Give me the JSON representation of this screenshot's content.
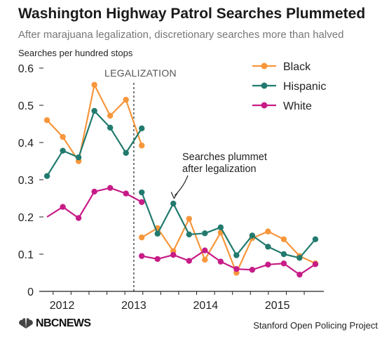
{
  "chart_data": {
    "type": "line",
    "title": "Washington Highway Patrol Searches Plummeted",
    "subtitle": "After marajuana legalization, discretionary searches more than halved",
    "ylabel": "Searches per hundred stops",
    "ylim": [
      0,
      0.6
    ],
    "yticks": [
      0,
      0.1,
      0.2,
      0.3,
      0.4,
      0.5,
      0.6
    ],
    "ytick_labels": [
      "0",
      "0.1",
      "0.2",
      "0.3",
      "0.4",
      "0.5",
      "0.6"
    ],
    "xlim": [
      2011.75,
      2015.55
    ],
    "xtick_labels": [
      {
        "label": "2012",
        "x": 2012.0
      },
      {
        "label": "2013",
        "x": 2013.0
      },
      {
        "label": "2014",
        "x": 2014.0
      },
      {
        "label": "2015",
        "x": 2015.0
      }
    ],
    "xticks": [
      2011.875,
      2012.125,
      2012.375,
      2012.625,
      2012.875,
      2013.125,
      2013.375,
      2013.625,
      2013.875,
      2014.125,
      2014.375,
      2014.625,
      2014.875,
      2015.125,
      2015.375
    ],
    "grid": false,
    "legend_position": "top-right",
    "legalization": {
      "x": 2013.0,
      "label": "LEGALIZATION"
    },
    "annotation": {
      "text": [
        "Searches plummet",
        "after legalization"
      ],
      "points_to": {
        "x": 2013.56,
        "y": 0.25
      }
    },
    "series": [
      {
        "name": "Black",
        "color": "#f7963b",
        "pre": {
          "x": [
            2011.79,
            2012.01,
            2012.23,
            2012.45,
            2012.67,
            2012.89,
            2013.11
          ],
          "y": [
            0.46,
            0.415,
            0.35,
            0.555,
            0.472,
            0.515,
            0.392
          ]
        },
        "post": {
          "x": [
            2013.11,
            2013.33,
            2013.55,
            2013.77,
            2013.99,
            2014.21,
            2014.43,
            2014.65,
            2014.87,
            2015.09,
            2015.31,
            2015.53
          ],
          "y": [
            0.145,
            0.17,
            0.108,
            0.195,
            0.085,
            0.158,
            0.05,
            0.143,
            0.161,
            0.14,
            0.095,
            0.075
          ]
        }
      },
      {
        "name": "Hispanic",
        "color": "#227a6e",
        "pre": {
          "x": [
            2011.79,
            2012.01,
            2012.23,
            2012.45,
            2012.67,
            2012.89,
            2013.11
          ],
          "y": [
            0.31,
            0.378,
            0.36,
            0.485,
            0.44,
            0.372,
            0.438
          ]
        },
        "post": {
          "x": [
            2013.11,
            2013.33,
            2013.55,
            2013.77,
            2013.99,
            2014.21,
            2014.43,
            2014.65,
            2014.87,
            2015.09,
            2015.31,
            2015.53
          ],
          "y": [
            0.266,
            0.155,
            0.236,
            0.153,
            0.156,
            0.172,
            0.097,
            0.15,
            0.12,
            0.1,
            0.09,
            0.14
          ]
        }
      },
      {
        "name": "White",
        "color": "#c71c87",
        "pre": {
          "x": [
            2011.79,
            2012.01,
            2012.23,
            2012.45,
            2012.67,
            2012.89,
            2013.11
          ],
          "y": [
            0.2,
            0.227,
            0.197,
            0.268,
            0.278,
            0.263,
            0.24
          ]
        },
        "post": {
          "x": [
            2013.11,
            2013.33,
            2013.55,
            2013.77,
            2013.99,
            2014.21,
            2014.43,
            2014.65,
            2014.87,
            2015.09,
            2015.31,
            2015.53
          ],
          "y": [
            0.095,
            0.087,
            0.098,
            0.082,
            0.11,
            0.08,
            0.06,
            0.058,
            0.072,
            0.075,
            0.045,
            0.073
          ]
        }
      }
    ]
  },
  "footer": {
    "logo_text": "NBCNEWS",
    "source": "Stanford Open Policing Project"
  },
  "icons": {
    "logo": "peacock-icon"
  }
}
